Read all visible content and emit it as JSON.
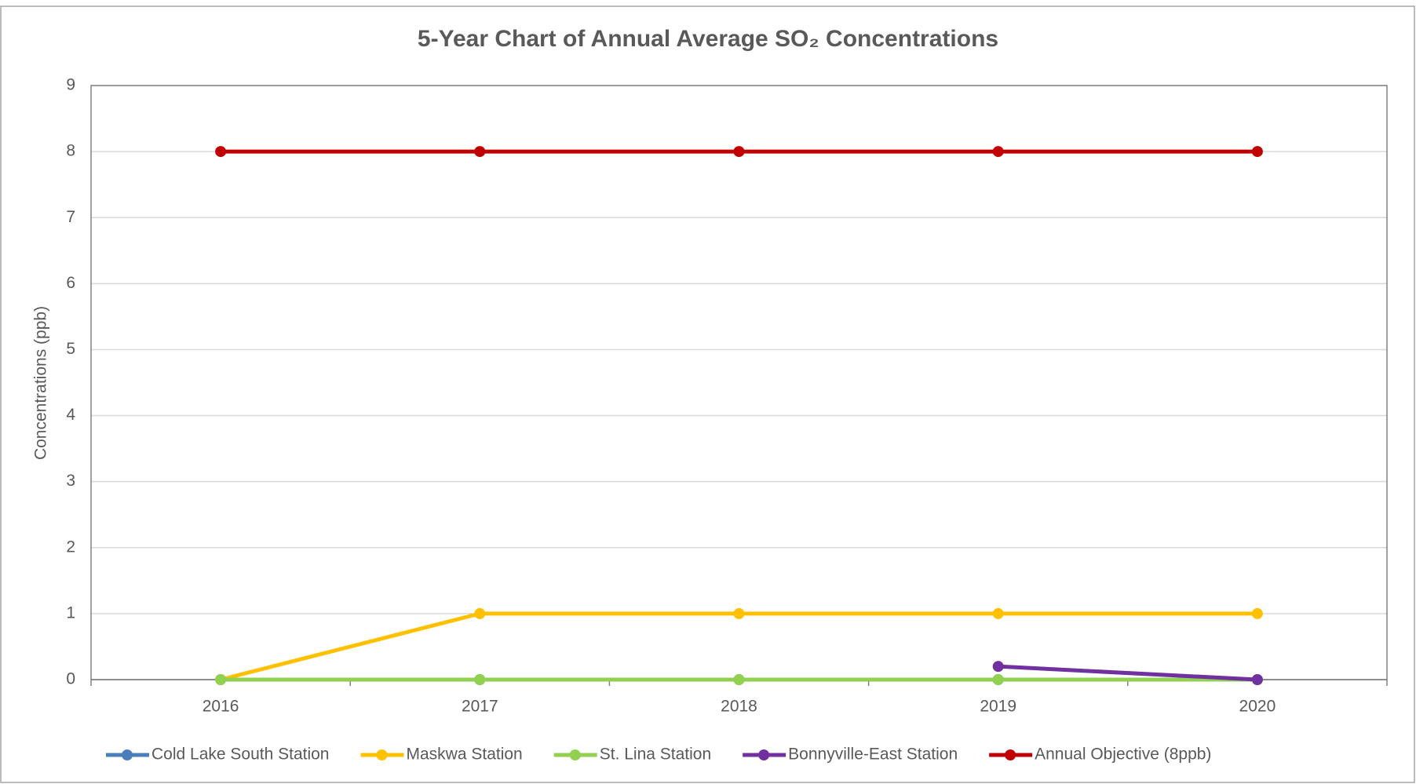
{
  "chart_data": {
    "type": "line",
    "title": "5-Year Chart of Annual Average SO₂ Concentrations",
    "y_label": "Concentrations (ppb)",
    "categories": [
      "2016",
      "2017",
      "2018",
      "2019",
      "2020"
    ],
    "series": [
      {
        "name": "Cold Lake South Station",
        "color": "#4a7ebb",
        "values": [
          0,
          0,
          0,
          0,
          0
        ]
      },
      {
        "name": "Maskwa Station",
        "color": "#ffc000",
        "values": [
          0,
          1,
          1,
          1,
          1
        ]
      },
      {
        "name": "St. Lina Station",
        "color": "#92d050",
        "values": [
          0,
          0,
          0,
          0,
          0
        ]
      },
      {
        "name": "Bonnyville-East Station",
        "color": "#7030a0",
        "values": [
          null,
          null,
          null,
          0.2,
          0
        ]
      },
      {
        "name": "Annual Objective (8ppb)",
        "color": "#c00000",
        "values": [
          8,
          8,
          8,
          8,
          8
        ]
      }
    ],
    "ylim": [
      0,
      9
    ],
    "yticks": [
      0,
      1,
      2,
      3,
      4,
      5,
      6,
      7,
      8,
      9
    ],
    "grid": true,
    "legend": "bottom"
  }
}
